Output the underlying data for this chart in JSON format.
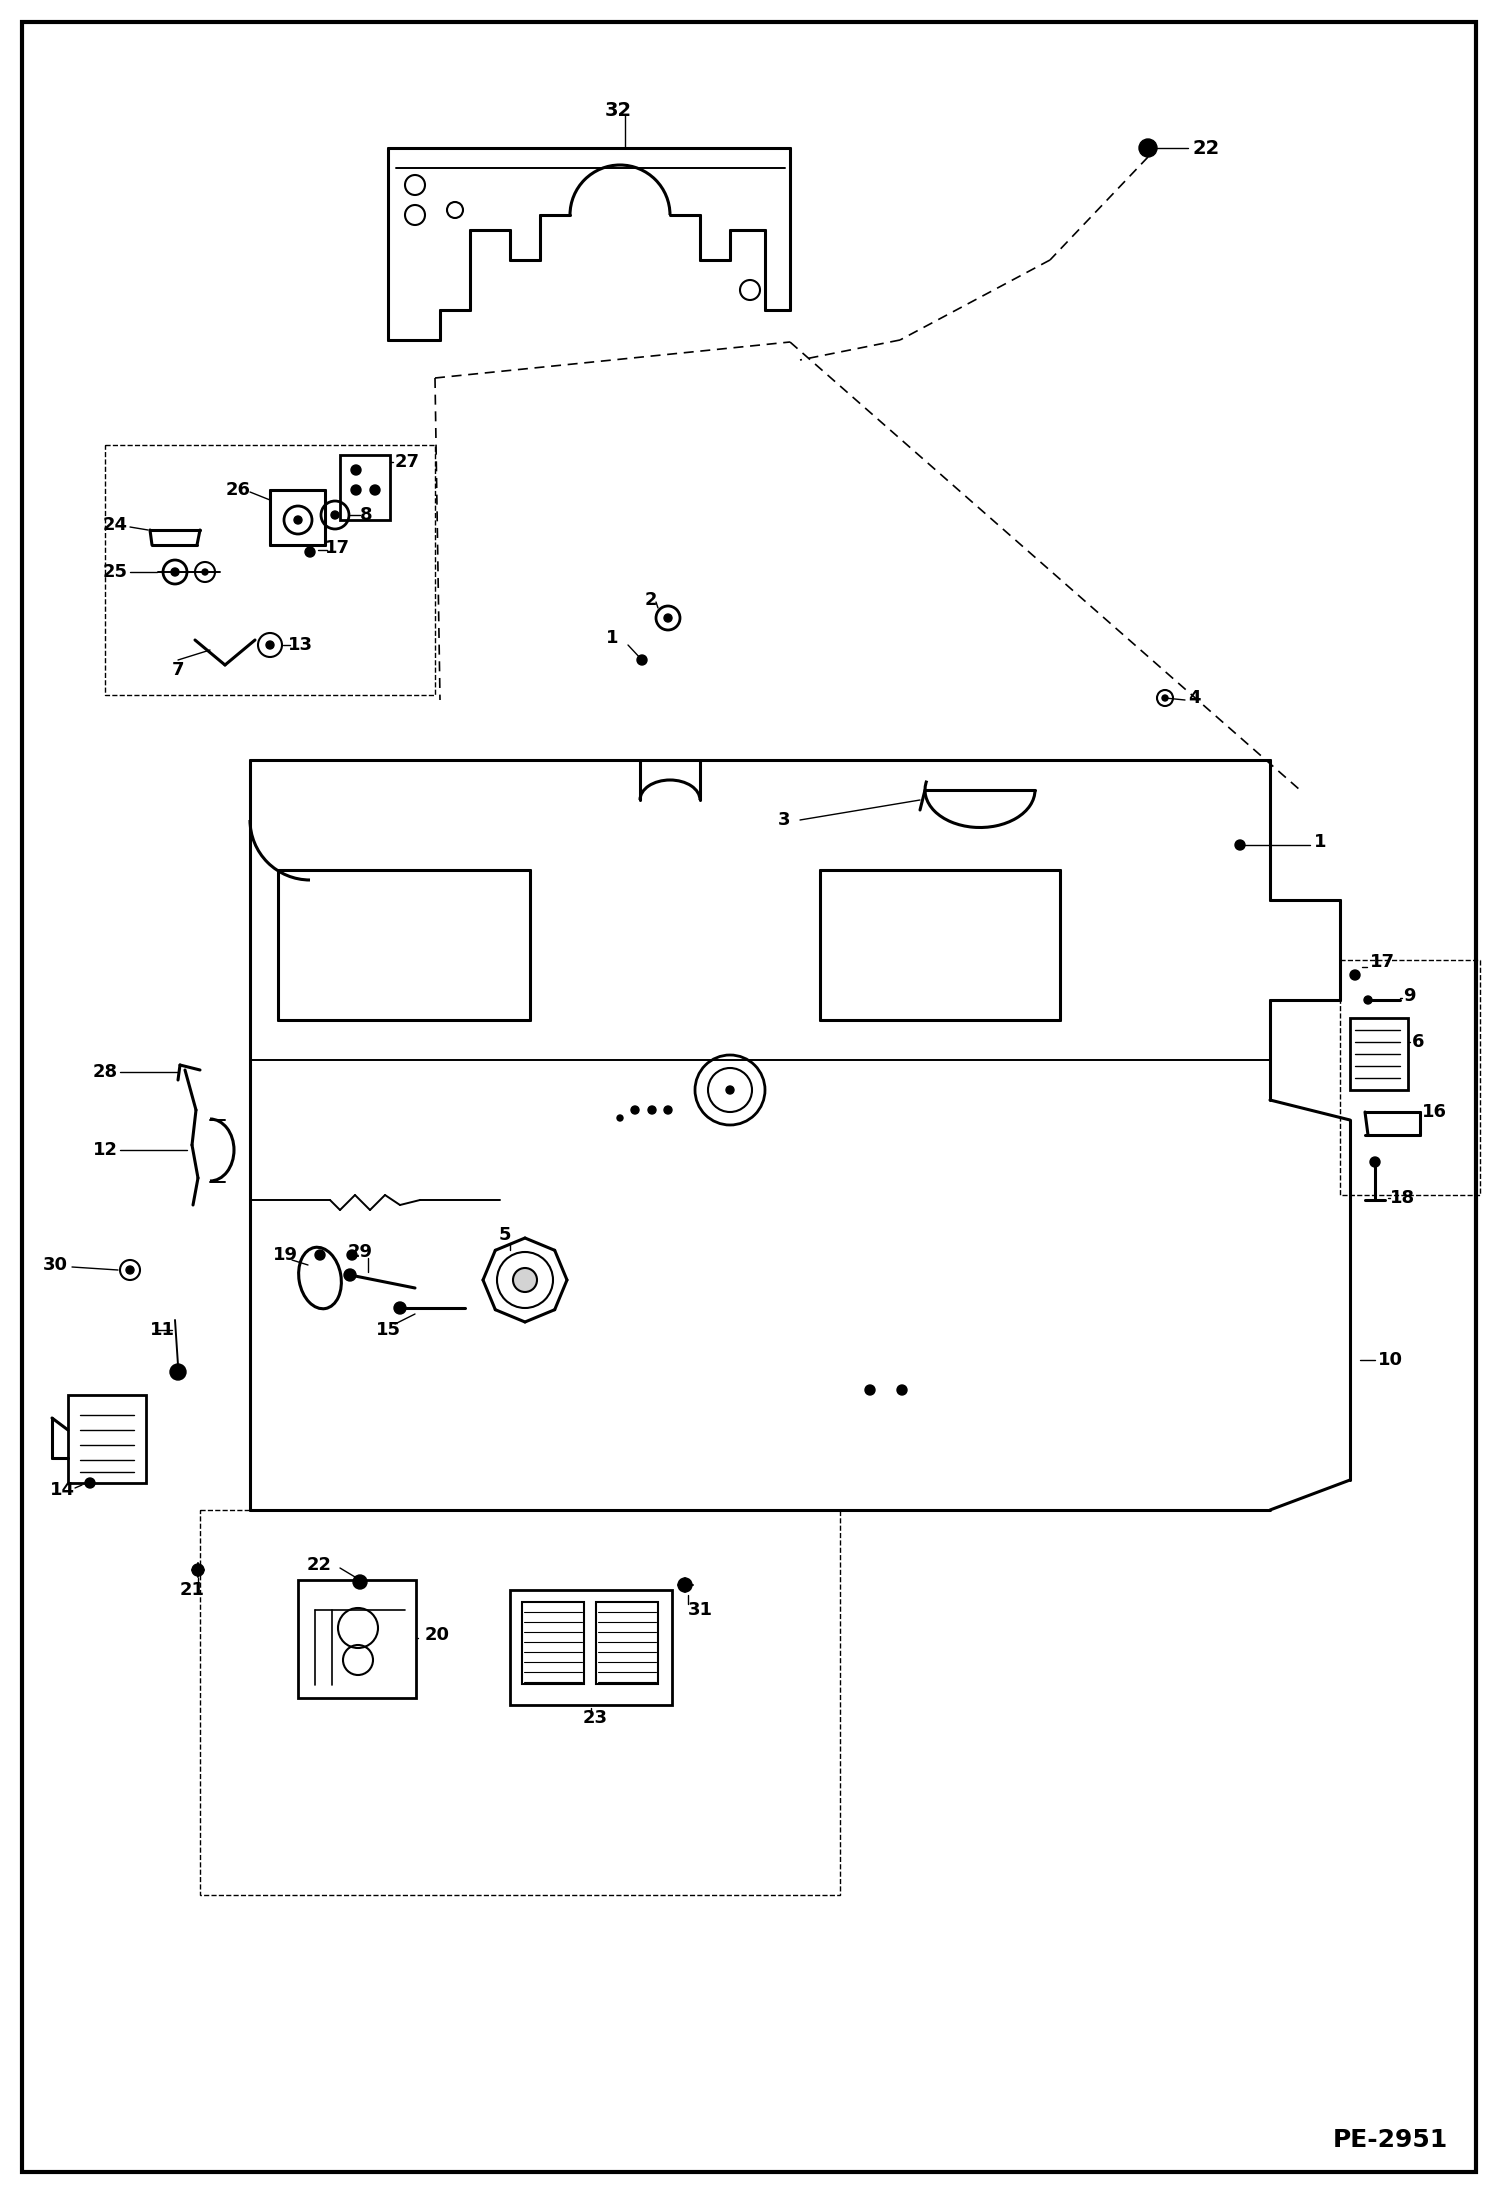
{
  "page_id": "PE-2951",
  "background_color": "#ffffff",
  "border_color": "#000000",
  "figsize": [
    14.98,
    21.94
  ],
  "dpi": 100
}
